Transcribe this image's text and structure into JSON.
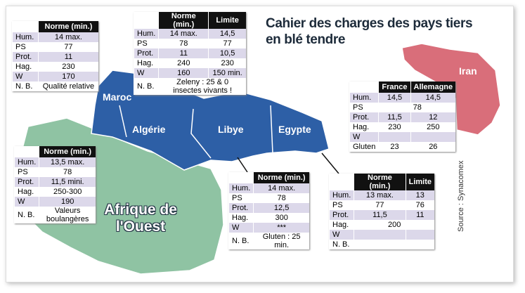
{
  "title": {
    "line1": "Cahier des charges des pays tiers",
    "line2": "en blé tendre"
  },
  "source": "Source : Synacomex",
  "map_labels": [
    "Maroc",
    "Algérie",
    "Libye",
    "Egypte",
    "Iran",
    "Afrique de l'Ouest"
  ],
  "tables": [
    {
      "header": [
        "Norme (min.)"
      ],
      "rows": [
        [
          "Hum.",
          "14 max."
        ],
        [
          "PS",
          "77"
        ],
        [
          "Prot.",
          "11"
        ],
        [
          "Hag.",
          "230"
        ],
        [
          "W",
          "170"
        ],
        [
          "N. B.",
          "Qualité relative"
        ]
      ]
    },
    {
      "header": [
        "Norme (min.)",
        "Limite"
      ],
      "rows": [
        [
          "Hum.",
          "14 max.",
          "14,5"
        ],
        [
          "PS",
          "78",
          "77"
        ],
        [
          "Prot.",
          "11",
          "10,5"
        ],
        [
          "Hag.",
          "240",
          "230"
        ],
        [
          "W",
          "160",
          "150 min."
        ],
        [
          "N. B.",
          "Zeleny : 25 & 0 insectes vivants !"
        ]
      ]
    },
    {
      "header": [
        "Norme (min.)"
      ],
      "rows": [
        [
          "Hum.",
          "13,5 max."
        ],
        [
          "PS",
          "78"
        ],
        [
          "Prot.",
          "11,5 mini."
        ],
        [
          "Hag.",
          "250-300"
        ],
        [
          "W",
          "190"
        ],
        [
          "N. B.",
          "Valeurs boulangères"
        ]
      ]
    },
    {
      "header": [
        "Norme (min.)"
      ],
      "rows": [
        [
          "Hum.",
          "14 max."
        ],
        [
          "PS",
          "78"
        ],
        [
          "Prot.",
          "12,5"
        ],
        [
          "Hag.",
          "300"
        ],
        [
          "W",
          "***"
        ],
        [
          "N. B.",
          "Gluten : 25 min."
        ]
      ]
    },
    {
      "header": [
        "Norme (min.)",
        "Limite"
      ],
      "rows": [
        [
          "Hum.",
          "13 max.",
          "13"
        ],
        [
          "PS",
          "77",
          "76"
        ],
        [
          "Prot.",
          "11,5",
          "11"
        ],
        [
          "Hag.",
          "200"
        ],
        [
          "W"
        ],
        [
          "N. B."
        ]
      ]
    },
    {
      "header": [
        "France",
        "Allemagne"
      ],
      "rows": [
        [
          "Hum.",
          "14,5",
          "14,5"
        ],
        [
          "PS",
          "78"
        ],
        [
          "Prot.",
          "11,5",
          "12"
        ],
        [
          "Hag.",
          "230",
          "250"
        ],
        [
          "W"
        ],
        [
          "Gluten",
          "23",
          "26"
        ]
      ]
    }
  ]
}
